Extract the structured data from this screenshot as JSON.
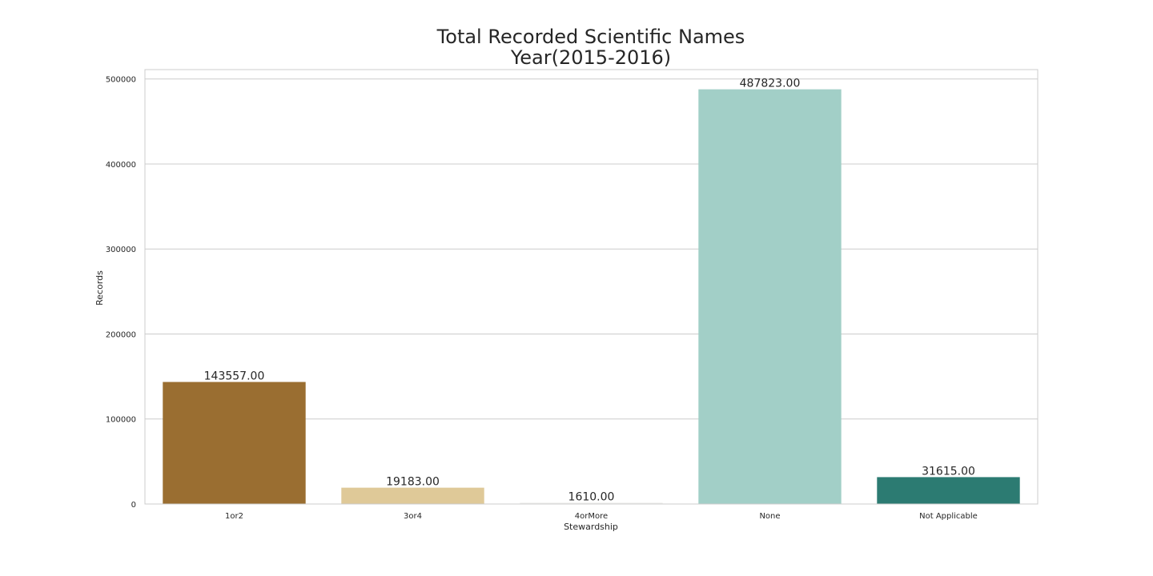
{
  "chart_data": {
    "type": "bar",
    "title_line1": "Total Recorded Scientific Names",
    "title_line2": "Year(2015-2016)",
    "xlabel": "Stewardship",
    "ylabel": "Records",
    "categories": [
      "1or2",
      "3or4",
      "4orMore",
      "None",
      "Not Applicable"
    ],
    "values": [
      143557.0,
      19183.0,
      1610.0,
      487823.0,
      31615.0
    ],
    "data_labels": [
      "143557.00",
      "19183.00",
      "1610.00",
      "487823.00",
      "31615.00"
    ],
    "colors": [
      "#9a6e31",
      "#dfc998",
      "#f0f0ee",
      "#a2cfc7",
      "#2c7b72"
    ],
    "yticks": [
      0,
      100000,
      200000,
      300000,
      400000,
      500000
    ],
    "ytick_labels": [
      "0",
      "100000",
      "200000",
      "300000",
      "400000",
      "500000"
    ],
    "ylim": [
      0,
      511000
    ],
    "grid": true,
    "grid_color": "#cccccc",
    "spine_color": "#cccccc"
  }
}
